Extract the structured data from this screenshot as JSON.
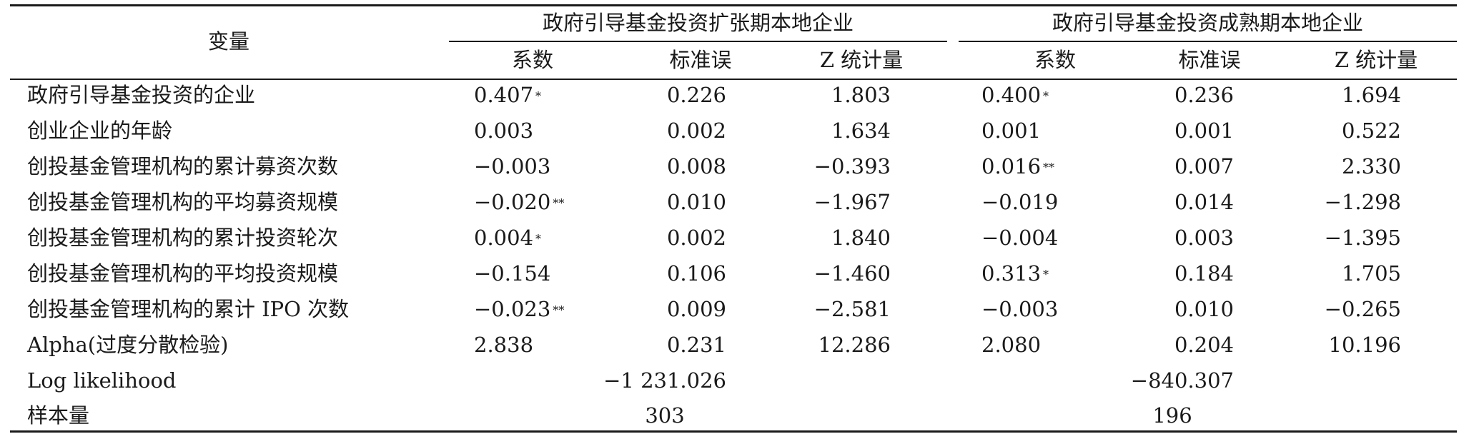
{
  "table": {
    "variable_header": "变量",
    "groups": [
      "政府引导基金投资扩张期本地企业",
      "政府引导基金投资成熟期本地企业"
    ],
    "subheaders": [
      "系数",
      "标准误",
      "Z 统计量",
      "系数",
      "标准误",
      "Z 统计量"
    ],
    "rows": [
      {
        "label": "政府引导基金投资的企业",
        "c1": "0.407",
        "s1": "*",
        "se1": "0.226",
        "z1": "1.803",
        "c2": "0.400",
        "s2": "*",
        "se2": "0.236",
        "z2": "1.694"
      },
      {
        "label": "创业企业的年龄",
        "c1": "0.003",
        "s1": "",
        "se1": "0.002",
        "z1": "1.634",
        "c2": "0.001",
        "s2": "",
        "se2": "0.001",
        "z2": "0.522"
      },
      {
        "label": "创投基金管理机构的累计募资次数",
        "c1": "−0.003",
        "s1": "",
        "se1": "0.008",
        "z1": "−0.393",
        "c2": "0.016",
        "s2": "**",
        "se2": "0.007",
        "z2": "2.330"
      },
      {
        "label": "创投基金管理机构的平均募资规模",
        "c1": "−0.020",
        "s1": "**",
        "se1": "0.010",
        "z1": "−1.967",
        "c2": "−0.019",
        "s2": "",
        "se2": "0.014",
        "z2": "−1.298"
      },
      {
        "label": "创投基金管理机构的累计投资轮次",
        "c1": "0.004",
        "s1": "*",
        "se1": "0.002",
        "z1": "1.840",
        "c2": "−0.004",
        "s2": "",
        "se2": "0.003",
        "z2": "−1.395"
      },
      {
        "label": "创投基金管理机构的平均投资规模",
        "c1": "−0.154",
        "s1": "",
        "se1": "0.106",
        "z1": "−1.460",
        "c2": "0.313",
        "s2": "*",
        "se2": "0.184",
        "z2": "1.705"
      },
      {
        "label": "创投基金管理机构的累计 IPO 次数",
        "c1": "−0.023",
        "s1": "**",
        "se1": "0.009",
        "z1": "−2.581",
        "c2": "−0.003",
        "s2": "",
        "se2": "0.010",
        "z2": "−0.265"
      },
      {
        "label": "Alpha(过度分散检验)",
        "c1": "2.838",
        "s1": "",
        "se1": "0.231",
        "z1": "12.286",
        "c2": "2.080",
        "s2": "",
        "se2": "0.204",
        "z2": "10.196"
      }
    ],
    "log_likelihood": {
      "label": "Log likelihood",
      "v1": "−1 231.026",
      "v2": "−840.307"
    },
    "sample_size": {
      "label": "样本量",
      "v1": "303",
      "v2": "196"
    }
  }
}
